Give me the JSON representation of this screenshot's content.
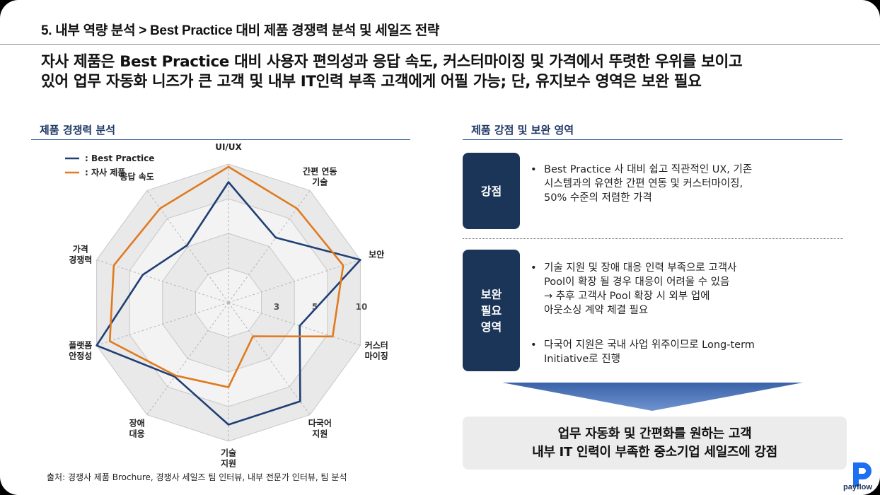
{
  "header": {
    "section_title": "5. 내부 역량 분석  > Best Practice 대비 제품 경쟁력 분석 및 세일즈 전략",
    "headline_line1": "자사 제품은 Best Practice 대비 사용자 편의성과 응답 속도, 커스터마이징 및 가격에서 뚜렷한 우위를 보이고",
    "headline_line2": "있어 업무 자동화 니즈가 큰 고객 및 내부 IT인력 부족 고객에게 어필 가능; 단, 유지보수 영역은 보완 필요"
  },
  "left_panel": {
    "title": "제품 경쟁력 분석",
    "footnote": "출처: 경쟁사 제품 Brochure, 경쟁사 세일즈 팀 인터뷰,  내부 전문가 인터뷰, 팀 분석"
  },
  "chart_data": {
    "type": "radar",
    "axes": [
      "UI/UX",
      "간편 연동\n기술",
      "보안",
      "커스터\n마이징",
      "다국어\n지원",
      "기술\n지원",
      "장애\n대응",
      "플랫폼\n안정성",
      "가격\n경쟁력",
      "응답 속도"
    ],
    "scale_labels": [
      "3",
      "5",
      "10"
    ],
    "rmax": 10,
    "series": [
      {
        "name": ": Best Practice",
        "color": "#1f3f75",
        "values": [
          8.7,
          5.8,
          10,
          5.4,
          8.8,
          8.8,
          6.6,
          10,
          6.5,
          5.1
        ]
      },
      {
        "name": ": 자사 제품",
        "color": "#e07a1f",
        "values": [
          9.8,
          8.4,
          8.7,
          7.9,
          3.0,
          6.1,
          6.5,
          9.0,
          8.7,
          8.4
        ]
      }
    ]
  },
  "right_panel": {
    "title": "제품 강점 및 보완 영역",
    "strength_label": "강점",
    "strength_text": "Best Practice 사 대비 쉽고 직관적인 UX, 기존\n시스템과의 유연한 간편 연동 및 커스터마이징,\n50% 수준의 저렴한 가격",
    "weakness_label": "보완\n필요\n영역",
    "weakness_text_1": "기술 지원 및 장애 대응 인력 부족으로 고객사\nPool이 확장 될 경우 대응이 어려울 수 있음\n→ 추후 고객사 Pool 확장 시 외부 업에\n아웃소싱 계약 체결 필요",
    "weakness_text_2": "다국어 지원은 국내 사업 위주이므로 Long-term\nInitiative로 진행",
    "bullet_char": "•",
    "conclusion_line1": "업무 자동화 및 간편화를 원하는 고객",
    "conclusion_line2": "내부 IT 인력이 부족한 중소기업 세일즈에 강점"
  },
  "logo": {
    "text": "payflow"
  }
}
